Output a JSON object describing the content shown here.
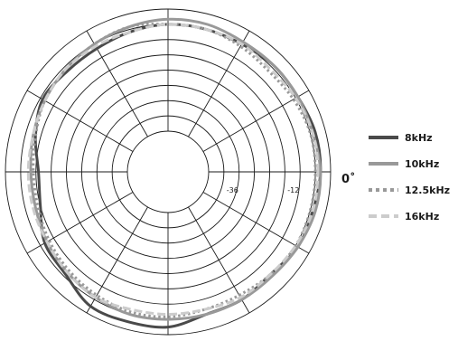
{
  "chart_data": {
    "type": "polar",
    "angle_label": "0˚",
    "r_min_db": -48,
    "r_max_db": 0,
    "ring_step_db": 6,
    "r_tick_labels": [
      {
        "value": -36,
        "label": "-36"
      },
      {
        "value": -12,
        "label": "-12"
      }
    ],
    "spoke_angles_deg": [
      0,
      30,
      60,
      90,
      120,
      150,
      180,
      210,
      240,
      270,
      300,
      330
    ],
    "legend_position": "right",
    "series": [
      {
        "name": "8kHz",
        "color": "#4a4a4a",
        "dash": "solid",
        "angles_deg": [
          0,
          15,
          30,
          45,
          60,
          75,
          90,
          105,
          120,
          135,
          150,
          165,
          180,
          195,
          210,
          225,
          240,
          255,
          270,
          285,
          300,
          315,
          330,
          345
        ],
        "values_db": [
          -4,
          -4,
          -5,
          -5,
          -6,
          -6,
          -6,
          -7,
          -8,
          -8,
          -7,
          -10,
          -13,
          -12,
          -8,
          -7,
          -3,
          -3,
          -3,
          -6,
          -6,
          -7,
          -5,
          -5
        ]
      },
      {
        "name": "10kHz",
        "color": "#999999",
        "dash": "solid",
        "angles_deg": [
          0,
          15,
          30,
          45,
          60,
          75,
          90,
          105,
          120,
          135,
          150,
          165,
          180,
          195,
          210,
          225,
          240,
          255,
          270,
          285,
          300,
          315,
          330,
          345
        ],
        "values_db": [
          -4,
          -5,
          -5,
          -5,
          -5,
          -4,
          -4,
          -5,
          -6,
          -7,
          -8,
          -9,
          -10,
          -10,
          -9,
          -8,
          -7,
          -6,
          -6,
          -6,
          -6,
          -6,
          -5,
          -4
        ]
      },
      {
        "name": "12.5kHz",
        "color": "#999999",
        "dash": "dotted",
        "angles_deg": [
          0,
          15,
          30,
          45,
          60,
          75,
          90,
          105,
          120,
          135,
          150,
          165,
          180,
          195,
          210,
          225,
          240,
          255,
          270,
          285,
          300,
          315,
          330,
          345
        ],
        "values_db": [
          -6,
          -6,
          -7,
          -8,
          -7,
          -6,
          -6,
          -5,
          -6,
          -7,
          -8,
          -10,
          -11,
          -11,
          -10,
          -9,
          -8,
          -7,
          -7,
          -8,
          -8,
          -7,
          -6,
          -6
        ]
      },
      {
        "name": "16kHz",
        "color": "#cccccc",
        "dash": "dashed",
        "angles_deg": [
          0,
          15,
          30,
          45,
          60,
          75,
          90,
          105,
          120,
          135,
          150,
          165,
          180,
          195,
          210,
          225,
          240,
          255,
          270,
          285,
          300,
          315,
          330,
          345
        ],
        "values_db": [
          -5,
          -5,
          -6,
          -7,
          -6,
          -6,
          -6,
          -7,
          -7,
          -7,
          -8,
          -9,
          -9,
          -9,
          -9,
          -8,
          -7,
          -8,
          -8,
          -8,
          -7,
          -7,
          -6,
          -5
        ]
      }
    ]
  }
}
